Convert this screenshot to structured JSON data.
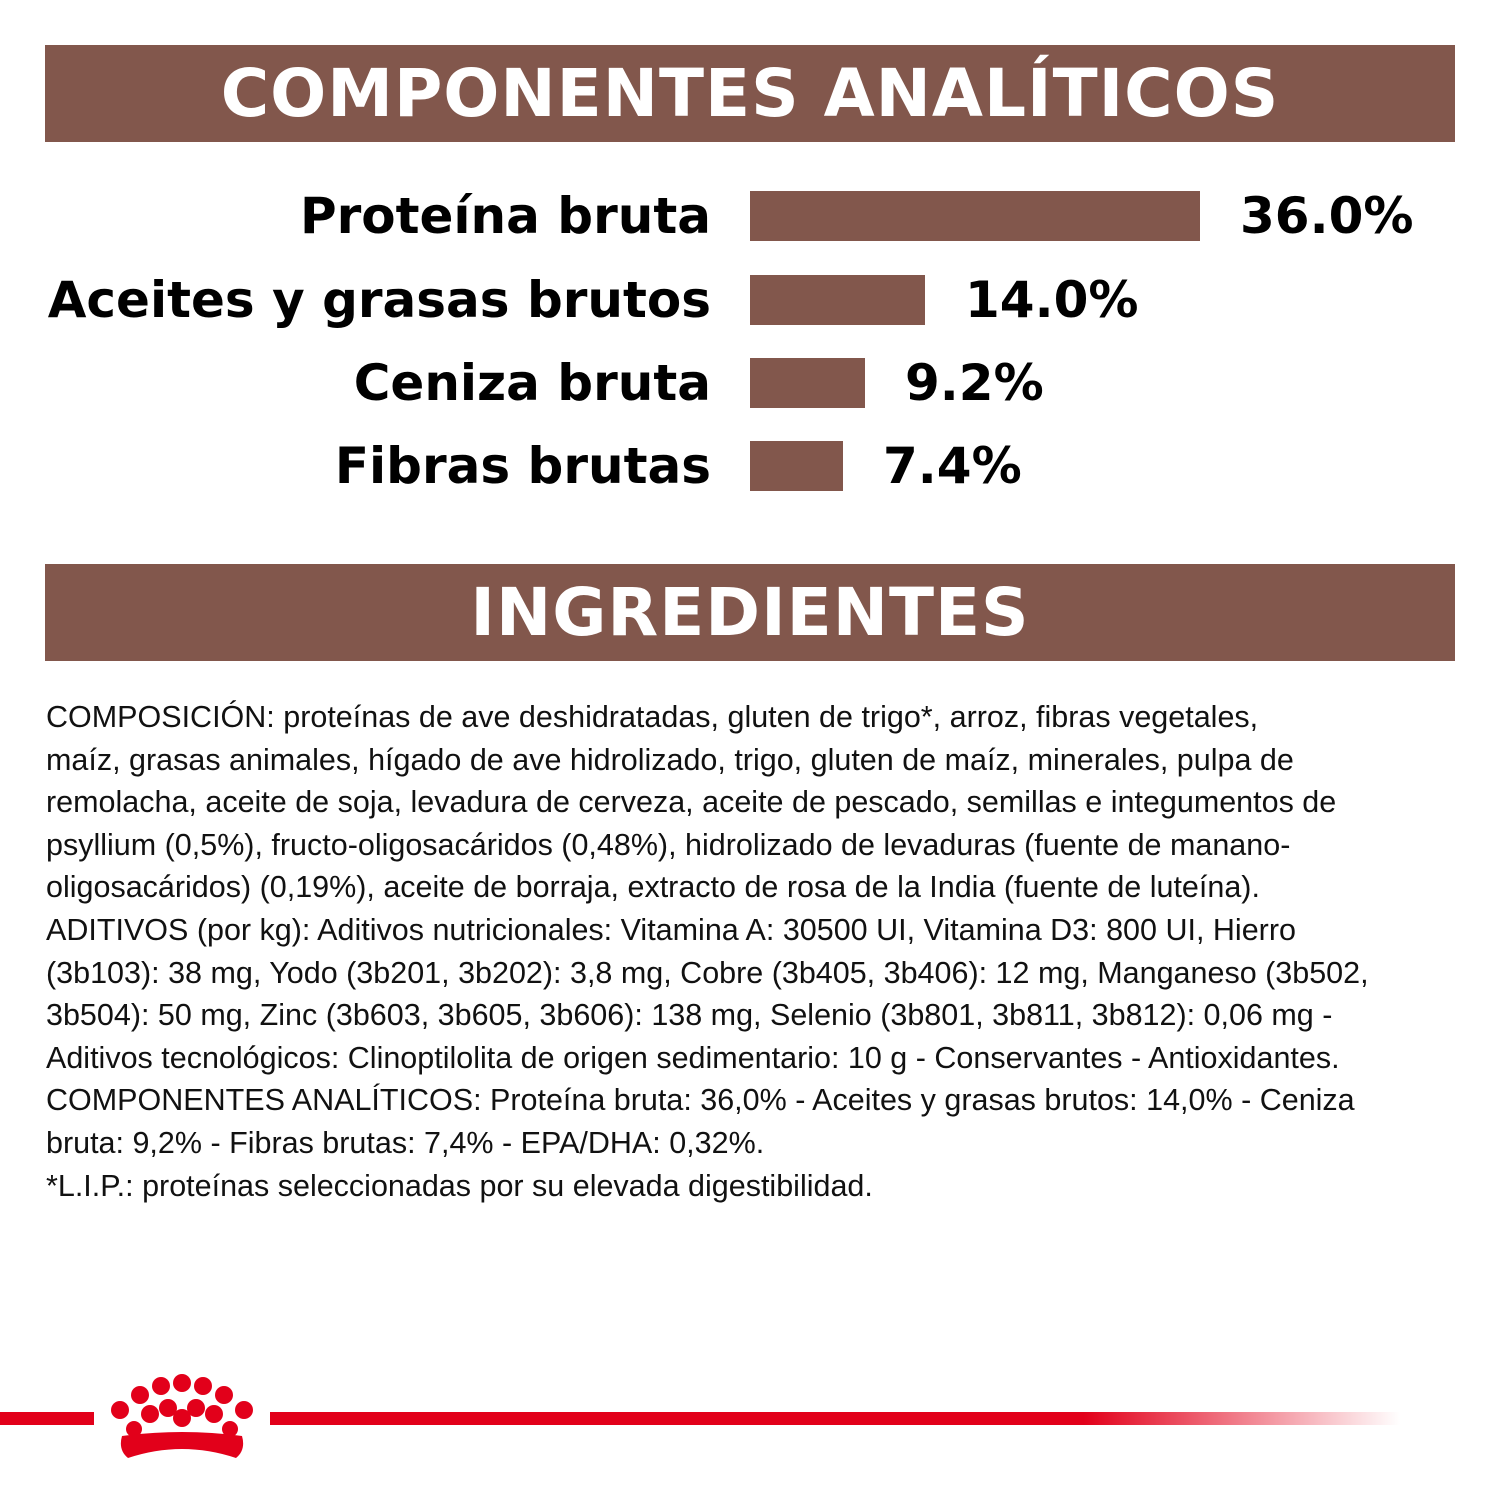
{
  "header": {
    "title": "COMPONENTES ANALÍTICOS"
  },
  "chart_data": {
    "type": "bar",
    "orientation": "horizontal",
    "title": "COMPONENTES ANALÍTICOS",
    "categories": [
      "Proteína bruta",
      "Aceites y grasas brutos",
      "Ceniza bruta",
      "Fibras brutas"
    ],
    "values": [
      36.0,
      14.0,
      9.2,
      7.4
    ],
    "value_labels": [
      "36.0%",
      "14.0%",
      "9.2%",
      "7.4%"
    ],
    "unit": "%",
    "bar_color": "#82574c"
  },
  "ingredients": {
    "title": "INGREDIENTES",
    "lines": [
      "COMPOSICIÓN: proteínas de ave deshidratadas, gluten de trigo*, arroz, fibras vegetales,",
      "maíz, grasas animales, hígado de ave hidrolizado, trigo, gluten de maíz, minerales, pulpa de",
      "remolacha, aceite de soja, levadura de cerveza, aceite de pescado, semillas e integumentos de",
      "psyllium (0,5%), fructo-oligosacáridos (0,48%), hidrolizado de levaduras (fuente de manano-",
      "oligosacáridos) (0,19%), aceite de borraja, extracto de rosa de la India (fuente de luteína).",
      "ADITIVOS (por kg): Aditivos nutricionales: Vitamina A: 30500 UI, Vitamina D3: 800 UI, Hierro",
      "(3b103): 38 mg, Yodo (3b201, 3b202): 3,8 mg, Cobre (3b405, 3b406): 12 mg, Manganeso (3b502,",
      "3b504): 50 mg, Zinc (3b603, 3b605, 3b606): 138 mg, Selenio (3b801, 3b811, 3b812): 0,06 mg -",
      "Aditivos tecnológicos: Clinoptilolita de origen sedimentario: 10 g - Conservantes - Antioxidantes.",
      "COMPONENTES ANALÍTICOS: Proteína bruta: 36,0% - Aceites y grasas brutos: 14,0% - Ceniza",
      "bruta: 9,2% - Fibras brutas: 7,4% - EPA/DHA: 0,32%.",
      "*L.I.P.: proteínas seleccionadas por su elevada digestibilidad."
    ]
  },
  "footer": {
    "logo_icon": "royal-canin-crown-icon",
    "brand_color": "#e2001a"
  }
}
